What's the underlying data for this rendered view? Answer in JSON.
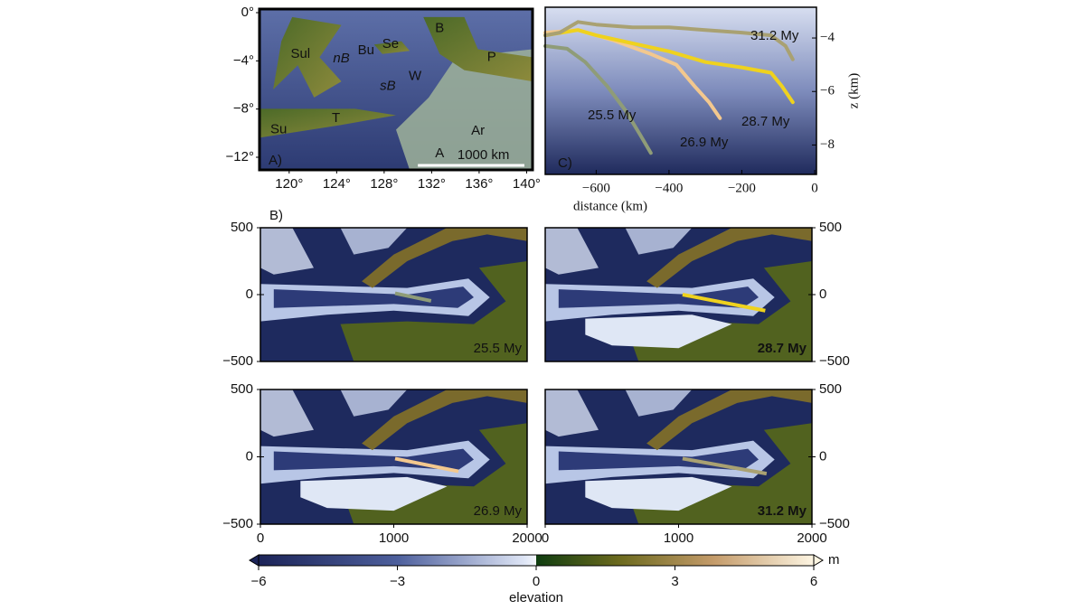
{
  "chart_data": [
    {
      "type": "map",
      "label": "A)",
      "xlim": [
        117.5,
        140.5
      ],
      "ylim": [
        -13.05,
        0.3
      ],
      "xticks": [
        {
          "value": 120,
          "label": "120°"
        },
        {
          "value": 124,
          "label": "124°"
        },
        {
          "value": 128,
          "label": "128°"
        },
        {
          "value": 132,
          "label": "132°"
        },
        {
          "value": 136,
          "label": "136°"
        },
        {
          "value": 140,
          "label": "140°"
        }
      ],
      "yticks": [
        {
          "value": 0,
          "label": "0°"
        },
        {
          "value": -4,
          "label": "−4°"
        },
        {
          "value": -8,
          "label": "−8°"
        },
        {
          "value": -12,
          "label": "−12°"
        }
      ],
      "annotations": [
        "Sul",
        "nB",
        "Bu",
        "Se",
        "B",
        "sB",
        "W",
        "P",
        "T",
        "Su",
        "Ar",
        "A"
      ],
      "scale_bar": "1000 km"
    },
    {
      "type": "line",
      "label": "C)",
      "xlabel": "distance (km)",
      "ylabel": "z (km)",
      "xlim": [
        -740,
        5
      ],
      "ylim": [
        -9.1,
        -2.85
      ],
      "xticks": [
        {
          "value": -600,
          "label": "−600"
        },
        {
          "value": -400,
          "label": "−400"
        },
        {
          "value": -200,
          "label": "−200"
        },
        0
      ],
      "yticks": [
        {
          "value": -4,
          "label": "−4"
        },
        {
          "value": -6,
          "label": "−6"
        },
        {
          "value": -8,
          "label": "−8"
        }
      ],
      "series": [
        {
          "name": "25.5 My",
          "color": "#8f9c78",
          "x": [
            -740,
            -680,
            -630,
            -570,
            -520,
            -480,
            -450
          ],
          "values": [
            -4.3,
            -4.4,
            -4.9,
            -5.8,
            -6.7,
            -7.6,
            -8.3
          ]
        },
        {
          "name": "26.9 My",
          "color": "#f3c88e",
          "x": [
            -740,
            -650,
            -550,
            -450,
            -380,
            -330,
            -290,
            -260
          ],
          "values": [
            -3.8,
            -3.7,
            -4.1,
            -4.6,
            -5.0,
            -5.8,
            -6.4,
            -7.0
          ]
        },
        {
          "name": "28.7 My",
          "color": "#efd21e",
          "x": [
            -740,
            -650,
            -600,
            -500,
            -400,
            -300,
            -200,
            -120,
            -90,
            -60
          ],
          "values": [
            -3.9,
            -3.7,
            -3.9,
            -4.2,
            -4.5,
            -4.9,
            -5.1,
            -5.3,
            -5.8,
            -6.4
          ]
        },
        {
          "name": "31.2 My",
          "color": "#a9a172",
          "x": [
            -740,
            -700,
            -650,
            -600,
            -500,
            -400,
            -300,
            -200,
            -120,
            -80,
            -60
          ],
          "values": [
            -3.9,
            -3.8,
            -3.4,
            -3.5,
            -3.6,
            -3.6,
            -3.7,
            -3.8,
            -3.9,
            -4.3,
            -4.8
          ]
        }
      ]
    },
    {
      "type": "model",
      "panel_label": "B)",
      "label": "25.5 My",
      "xlim": [
        0,
        2000
      ],
      "ylim": [
        -500,
        500
      ],
      "yticks": [
        {
          "value": -500,
          "label": "−500"
        },
        0,
        500
      ],
      "profile": {
        "x": [
          1010,
          1280
        ],
        "y": [
          10,
          -47
        ]
      },
      "color": "#8f9c78"
    },
    {
      "type": "model",
      "label": "28.7 My",
      "xlim": [
        0,
        2000
      ],
      "ylim": [
        -500,
        500
      ],
      "yticks": [
        {
          "value": -500,
          "label": "−500"
        },
        0,
        500
      ],
      "profile": {
        "x": [
          1030,
          1650
        ],
        "y": [
          0,
          -120
        ]
      },
      "color": "#efd21e"
    },
    {
      "type": "model",
      "label": "26.9 My",
      "xlim": [
        0,
        2000
      ],
      "ylim": [
        -500,
        500
      ],
      "xticks": [
        0,
        1000,
        2000
      ],
      "yticks": [
        {
          "value": -500,
          "label": "−500"
        },
        0,
        500
      ],
      "profile": {
        "x": [
          1010,
          1485
        ],
        "y": [
          -13,
          -108
        ]
      },
      "color": "#f3c88e"
    },
    {
      "type": "model",
      "label": "31.2 My",
      "xlim": [
        0,
        2000
      ],
      "ylim": [
        -500,
        500
      ],
      "xticks": [
        0,
        1000,
        2000
      ],
      "yticks": [
        {
          "value": -500,
          "label": "−500"
        },
        0,
        500
      ],
      "profile": {
        "x": [
          1030,
          1660
        ],
        "y": [
          -13,
          -125
        ]
      },
      "color": "#a9a172"
    },
    {
      "type": "colorbar",
      "title": "elevation",
      "unit": "m",
      "xlim": [
        -6,
        6
      ],
      "xticks": [
        {
          "value": -6,
          "label": "−6"
        },
        {
          "value": -3,
          "label": "−3"
        },
        0,
        3,
        6
      ]
    }
  ]
}
